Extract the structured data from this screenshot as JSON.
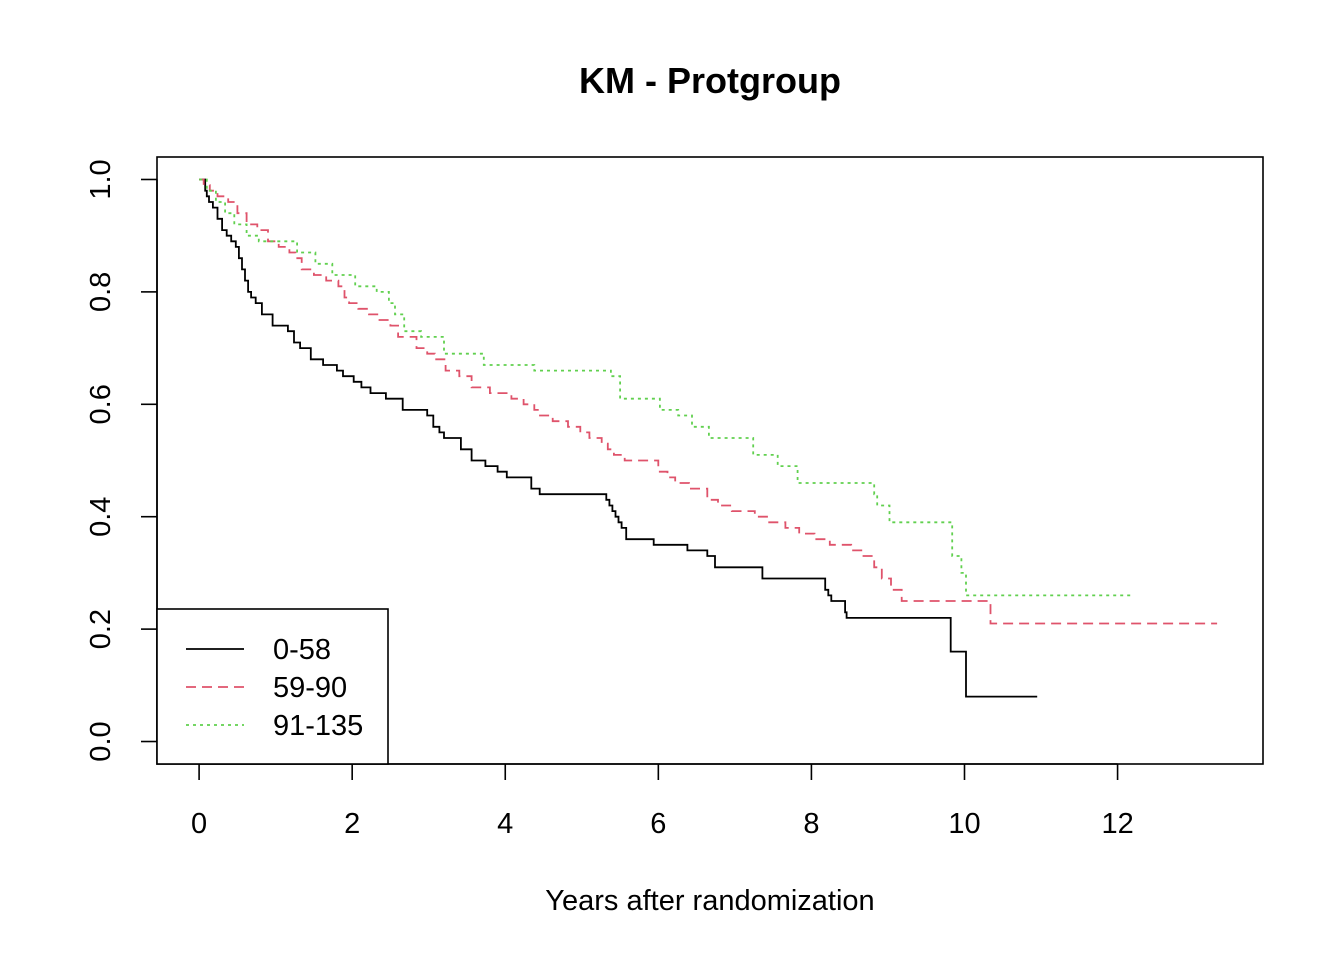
{
  "chart_data": {
    "type": "line",
    "step": true,
    "title": "KM - Protgroup",
    "xlabel": "Years after randomization",
    "ylabel": "",
    "xlim": [
      -0.55,
      13.9
    ],
    "ylim": [
      -0.04,
      1.04
    ],
    "xticks": [
      0,
      2,
      4,
      6,
      8,
      10,
      12
    ],
    "yticks": [
      0.0,
      0.2,
      0.4,
      0.6,
      0.8,
      1.0
    ],
    "xtick_labels": [
      "0",
      "2",
      "4",
      "6",
      "8",
      "10",
      "12"
    ],
    "ytick_labels": [
      "0.0",
      "0.2",
      "0.4",
      "0.6",
      "0.8",
      "1.0"
    ],
    "grid": false,
    "legend_position": "bottom-left",
    "series": [
      {
        "name": "0-58",
        "color": "#000000",
        "dash": "solid",
        "x": [
          0,
          0.08,
          0.1,
          0.13,
          0.18,
          0.24,
          0.3,
          0.36,
          0.42,
          0.48,
          0.52,
          0.56,
          0.6,
          0.64,
          0.68,
          0.74,
          0.82,
          0.96,
          1.16,
          1.24,
          1.32,
          1.46,
          1.62,
          1.8,
          1.88,
          2.02,
          2.12,
          2.24,
          2.44,
          2.66,
          2.98,
          3.06,
          3.14,
          3.2,
          3.42,
          3.56,
          3.74,
          3.9,
          4.02,
          4.34,
          4.45,
          5.32,
          5.36,
          5.4,
          5.44,
          5.48,
          5.52,
          5.58,
          5.94,
          6.38,
          6.64,
          6.74,
          7.36,
          8.18,
          8.22,
          8.26,
          8.44,
          8.46,
          9.82,
          10.02,
          10.95
        ],
        "y": [
          1.0,
          0.98,
          0.97,
          0.96,
          0.95,
          0.93,
          0.91,
          0.9,
          0.89,
          0.88,
          0.86,
          0.84,
          0.82,
          0.8,
          0.79,
          0.78,
          0.76,
          0.74,
          0.73,
          0.71,
          0.7,
          0.68,
          0.67,
          0.66,
          0.65,
          0.64,
          0.63,
          0.62,
          0.61,
          0.59,
          0.58,
          0.56,
          0.55,
          0.54,
          0.52,
          0.5,
          0.49,
          0.48,
          0.47,
          0.45,
          0.44,
          0.43,
          0.42,
          0.41,
          0.4,
          0.39,
          0.38,
          0.36,
          0.35,
          0.34,
          0.33,
          0.31,
          0.29,
          0.27,
          0.26,
          0.25,
          0.23,
          0.22,
          0.16,
          0.08,
          0.08
        ]
      },
      {
        "name": "59-90",
        "color": "#DF536B",
        "dash": "dashed",
        "x": [
          0,
          0.06,
          0.14,
          0.24,
          0.38,
          0.5,
          0.62,
          0.76,
          0.9,
          1.04,
          1.18,
          1.26,
          1.34,
          1.5,
          1.66,
          1.82,
          1.9,
          1.96,
          2.08,
          2.22,
          2.34,
          2.5,
          2.6,
          2.84,
          2.98,
          3.08,
          3.22,
          3.4,
          3.56,
          3.8,
          4.08,
          4.24,
          4.38,
          4.44,
          4.62,
          4.82,
          4.98,
          5.1,
          5.26,
          5.34,
          5.42,
          5.56,
          6.0,
          6.12,
          6.22,
          6.4,
          6.64,
          6.78,
          6.96,
          7.26,
          7.42,
          7.66,
          7.84,
          8.04,
          8.24,
          8.52,
          8.68,
          8.82,
          8.92,
          9.04,
          9.18,
          9.58,
          9.76,
          10.34,
          13.3
        ],
        "y": [
          1.0,
          0.99,
          0.98,
          0.97,
          0.96,
          0.94,
          0.92,
          0.91,
          0.89,
          0.88,
          0.87,
          0.86,
          0.84,
          0.83,
          0.82,
          0.81,
          0.79,
          0.78,
          0.77,
          0.76,
          0.75,
          0.74,
          0.72,
          0.7,
          0.69,
          0.68,
          0.66,
          0.65,
          0.63,
          0.62,
          0.61,
          0.6,
          0.59,
          0.58,
          0.57,
          0.56,
          0.55,
          0.54,
          0.53,
          0.52,
          0.51,
          0.5,
          0.48,
          0.47,
          0.46,
          0.45,
          0.43,
          0.42,
          0.41,
          0.4,
          0.39,
          0.38,
          0.37,
          0.36,
          0.35,
          0.34,
          0.33,
          0.31,
          0.29,
          0.27,
          0.25,
          0.25,
          0.25,
          0.21,
          0.21
        ]
      },
      {
        "name": "91-135",
        "color": "#61D04F",
        "dash": "dotted",
        "x": [
          0,
          0.1,
          0.22,
          0.34,
          0.46,
          0.62,
          0.78,
          1.28,
          1.52,
          1.74,
          2.04,
          2.32,
          2.48,
          2.56,
          2.68,
          2.9,
          3.2,
          3.72,
          4.38,
          5.38,
          5.5,
          6.02,
          6.26,
          6.44,
          6.66,
          7.24,
          7.56,
          7.82,
          8.82,
          8.86,
          9.02,
          9.84,
          9.96,
          10.02,
          12.2
        ],
        "y": [
          1.0,
          0.98,
          0.96,
          0.94,
          0.92,
          0.9,
          0.89,
          0.87,
          0.85,
          0.83,
          0.81,
          0.8,
          0.78,
          0.76,
          0.73,
          0.72,
          0.69,
          0.67,
          0.66,
          0.65,
          0.61,
          0.59,
          0.58,
          0.56,
          0.54,
          0.51,
          0.49,
          0.46,
          0.44,
          0.42,
          0.39,
          0.33,
          0.3,
          0.26,
          0.26
        ]
      }
    ]
  }
}
